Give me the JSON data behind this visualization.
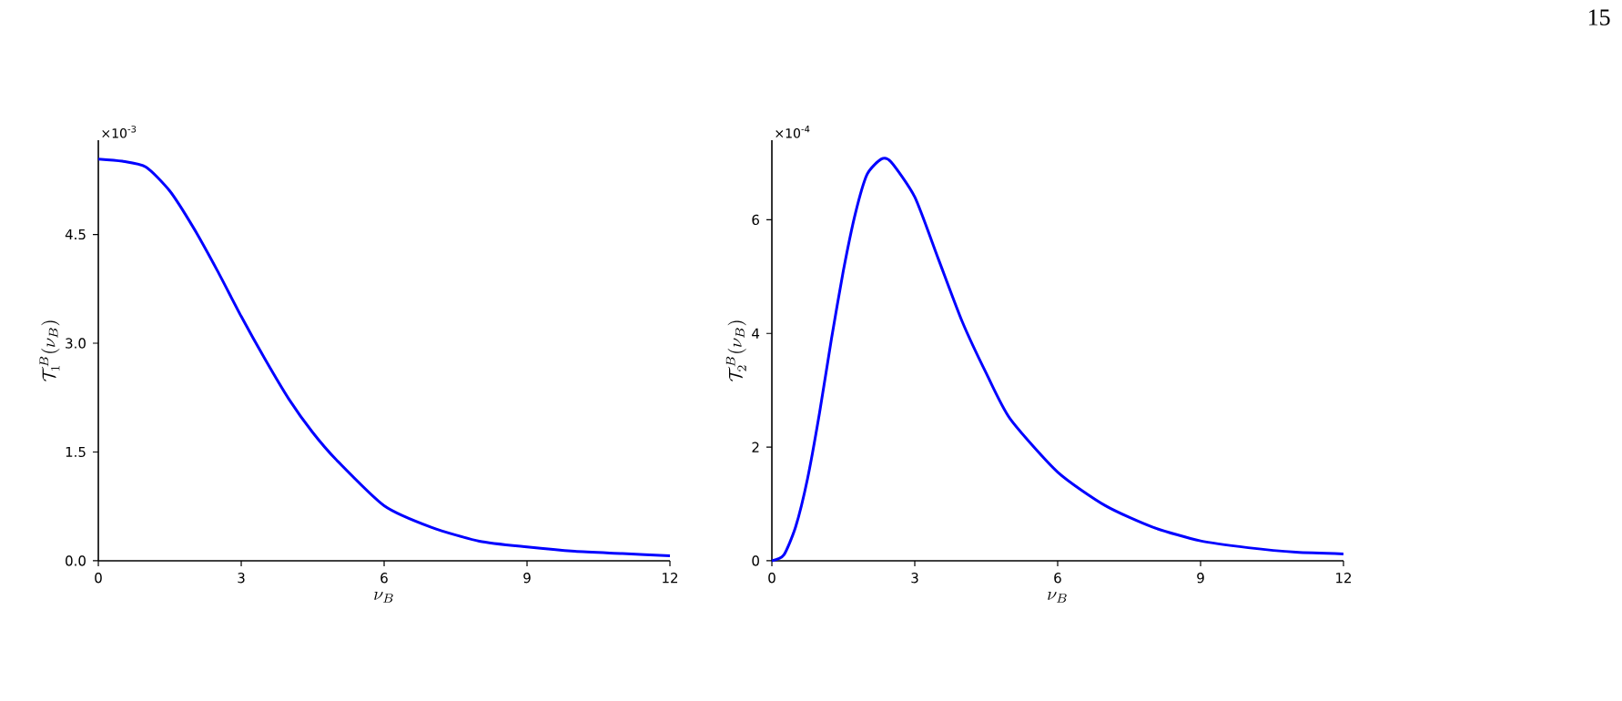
{
  "chart_data": [
    {
      "type": "line",
      "xlabel": "\\nu_B",
      "ylabel": "\\mathcal{T}_1^B(\\nu_B)",
      "color": "#0000ff",
      "x": [
        0,
        0.5,
        1,
        1.5,
        2,
        2.5,
        3,
        3.5,
        4,
        4.5,
        5,
        6,
        7,
        8,
        9,
        10,
        11,
        12
      ],
      "values": [
        5.54,
        5.51,
        5.43,
        5.1,
        4.59,
        4.0,
        3.37,
        2.78,
        2.23,
        1.77,
        1.39,
        0.76,
        0.46,
        0.27,
        0.19,
        0.13,
        0.1,
        0.07
      ],
      "xlim": [
        0,
        12
      ],
      "ylim": [
        0,
        5.8
      ],
      "xticks": [
        0,
        3,
        6,
        9,
        12
      ],
      "yticks": [
        {
          "value": 0,
          "label": "0.0"
        },
        {
          "value": 1.5,
          "label": "1.5"
        },
        {
          "value": 3,
          "label": "3.0"
        },
        {
          "value": 4.5,
          "label": "4.5"
        }
      ],
      "annotations": [
        "×10$^{-3}$"
      ]
    },
    {
      "type": "line",
      "xlabel": "\\nu_B",
      "ylabel": "\\mathcal{T}_2^B(\\nu_B)",
      "color": "#0000ff",
      "x": [
        0,
        0.25,
        0.5,
        0.75,
        1,
        1.25,
        1.5,
        1.75,
        2,
        2.3,
        2.5,
        3,
        3.5,
        4,
        4.5,
        5,
        6,
        7,
        8,
        9,
        10,
        11,
        12
      ],
      "values": [
        0,
        0.1,
        0.6,
        1.45,
        2.6,
        3.9,
        5.1,
        6.1,
        6.8,
        7.07,
        7.02,
        6.4,
        5.3,
        4.2,
        3.3,
        2.5,
        1.56,
        0.97,
        0.59,
        0.35,
        0.23,
        0.15,
        0.12
      ],
      "xlim": [
        0,
        12
      ],
      "ylim": [
        0,
        7.4
      ],
      "xticks": [
        0,
        3,
        6,
        9,
        12
      ],
      "yticks": [
        0,
        2,
        4,
        6
      ],
      "annotations": [
        "×10$^{-4}$",
        "15"
      ]
    }
  ]
}
